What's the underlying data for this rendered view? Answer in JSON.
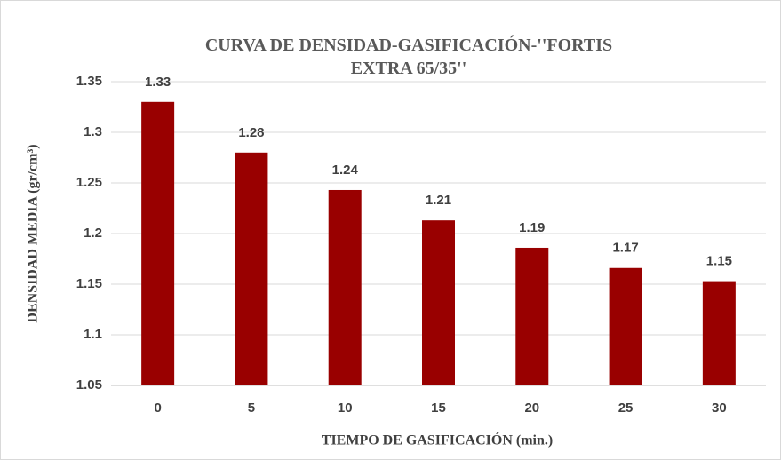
{
  "chart_data": {
    "type": "bar",
    "title": "CURVA DE DENSIDAD-GASIFICACIÓN-''FORTIS EXTRA 65/35''",
    "x_label": "TIEMPO DE GASIFICACIÓN (min.)",
    "y_label": "DENSIDAD MEDIA (gr/cm³)",
    "categories": [
      "0",
      "5",
      "10",
      "15",
      "20",
      "25",
      "30"
    ],
    "values": [
      1.33,
      1.28,
      1.243,
      1.213,
      1.186,
      1.166,
      1.153
    ],
    "value_labels": [
      "1.33",
      "1.28",
      "1.24",
      "1.21",
      "1.19",
      "1.17",
      "1.15"
    ],
    "color": "#990000",
    "ylim": [
      1.05,
      1.35
    ],
    "yticks": [
      1.05,
      1.1,
      1.15,
      1.2,
      1.25,
      1.3,
      1.35
    ],
    "grid": true
  }
}
